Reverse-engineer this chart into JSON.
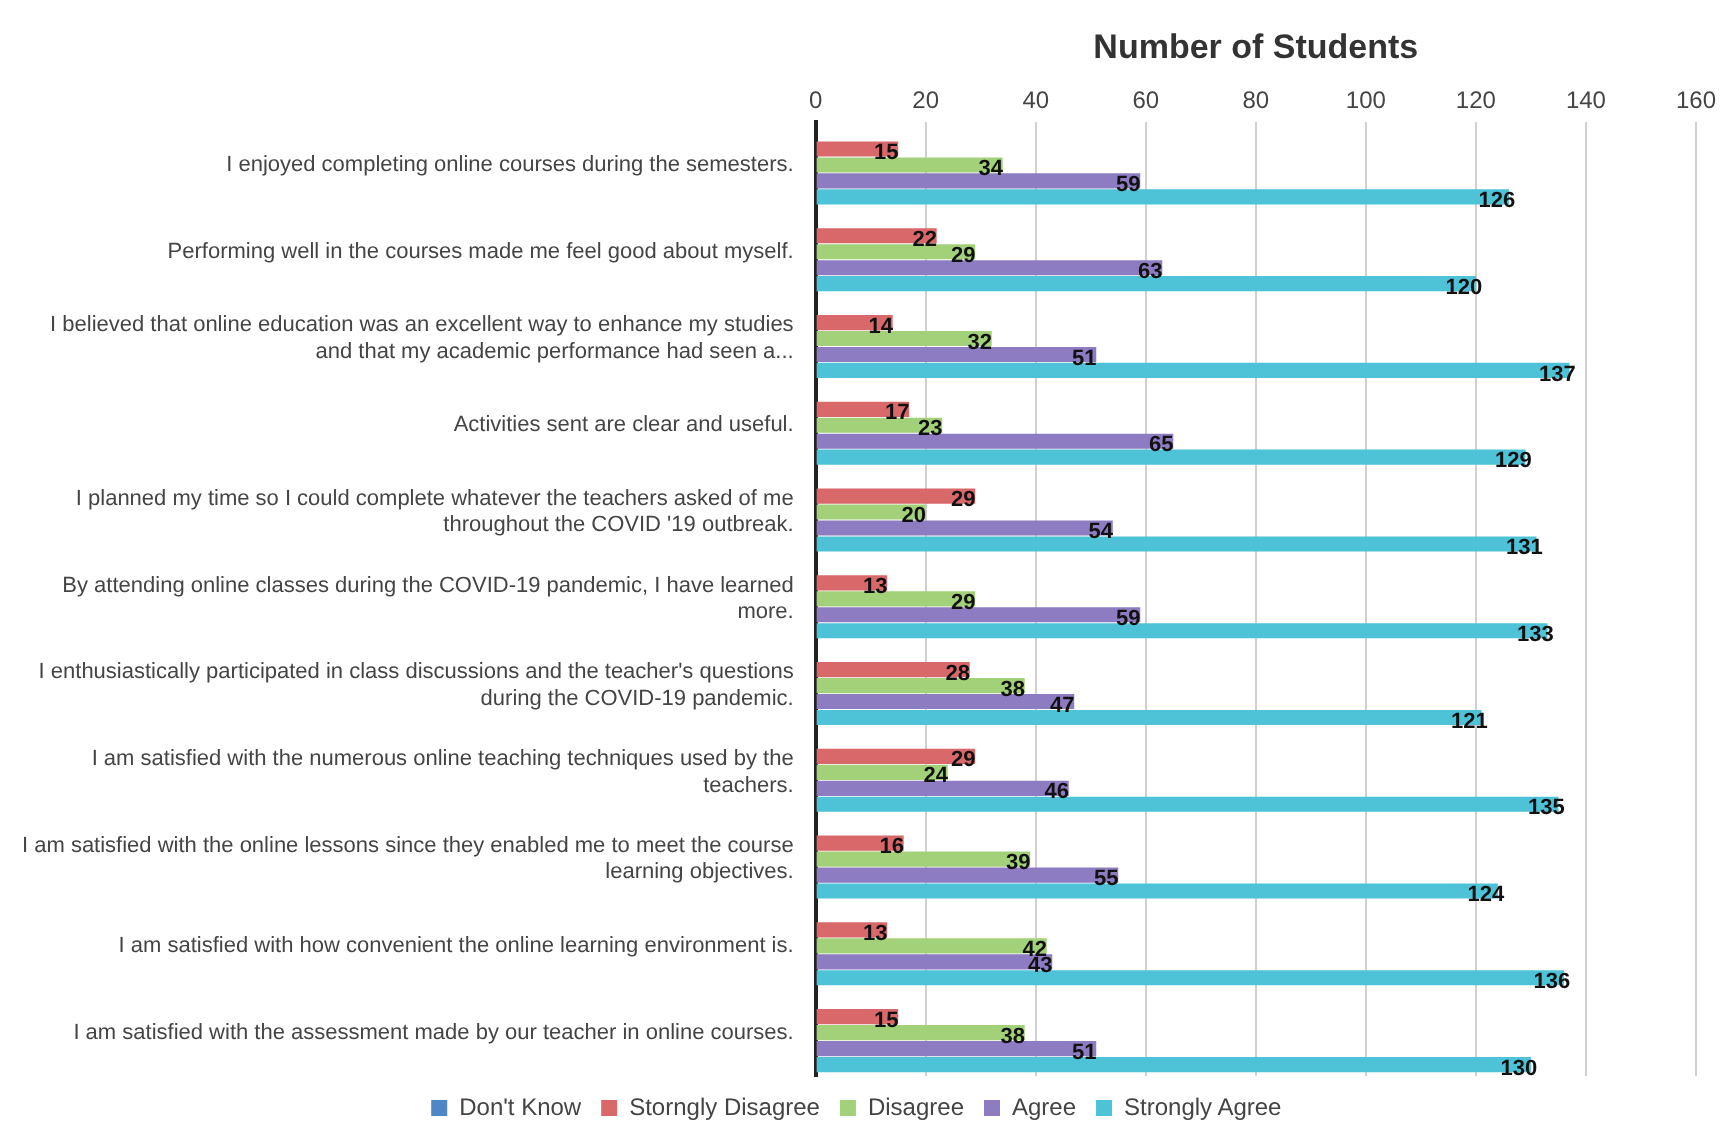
{
  "chart_data": {
    "type": "bar",
    "orientation": "horizontal",
    "xlabel": "Number of Students",
    "categories": [
      "I enjoyed completing online courses during the semesters.",
      "Performing well in the courses made me feel good about myself.",
      "I believed that online education was an excellent way to enhance my studies and that my academic performance had seen a...",
      "Activities sent are clear and useful.",
      "I planned my time so I could complete whatever the teachers asked of me throughout the COVID '19 outbreak.",
      "By attending online classes during the COVID-19 pandemic, I have learned more.",
      "I enthusiastically participated in class discussions and the teacher's questions during the COVID-19 pandemic.",
      "I am satisfied with the numerous online teaching techniques used by the teachers.",
      "I am satisfied with the online lessons since they enabled me to meet the course learning objectives.",
      "I am satisfied with how convenient the online learning environment is.",
      "I am satisfied with the assessment made by our teacher in online courses."
    ],
    "series": [
      {
        "name": "Don't Know",
        "color": "#4f86c6",
        "values": [
          null,
          null,
          null,
          null,
          null,
          null,
          null,
          null,
          null,
          null,
          null
        ]
      },
      {
        "name": "Storngly Disagree",
        "color": "#d9686b",
        "values": [
          15,
          22,
          14,
          17,
          29,
          13,
          28,
          29,
          16,
          13,
          15
        ]
      },
      {
        "name": "Disagree",
        "color": "#a3d17a",
        "values": [
          34,
          29,
          32,
          23,
          20,
          29,
          38,
          24,
          39,
          42,
          38
        ]
      },
      {
        "name": "Agree",
        "color": "#8e7cc3",
        "values": [
          59,
          63,
          51,
          65,
          54,
          59,
          47,
          46,
          55,
          43,
          51
        ]
      },
      {
        "name": "Strongly Agree",
        "color": "#4ec3d8",
        "values": [
          126,
          120,
          137,
          129,
          131,
          133,
          121,
          135,
          124,
          136,
          130
        ]
      }
    ],
    "xlim": [
      0,
      160
    ],
    "xticks": [
      0,
      20,
      40,
      60,
      80,
      100,
      120,
      140,
      160
    ],
    "grid": "x",
    "legend": "bottom",
    "data_labels": true
  }
}
